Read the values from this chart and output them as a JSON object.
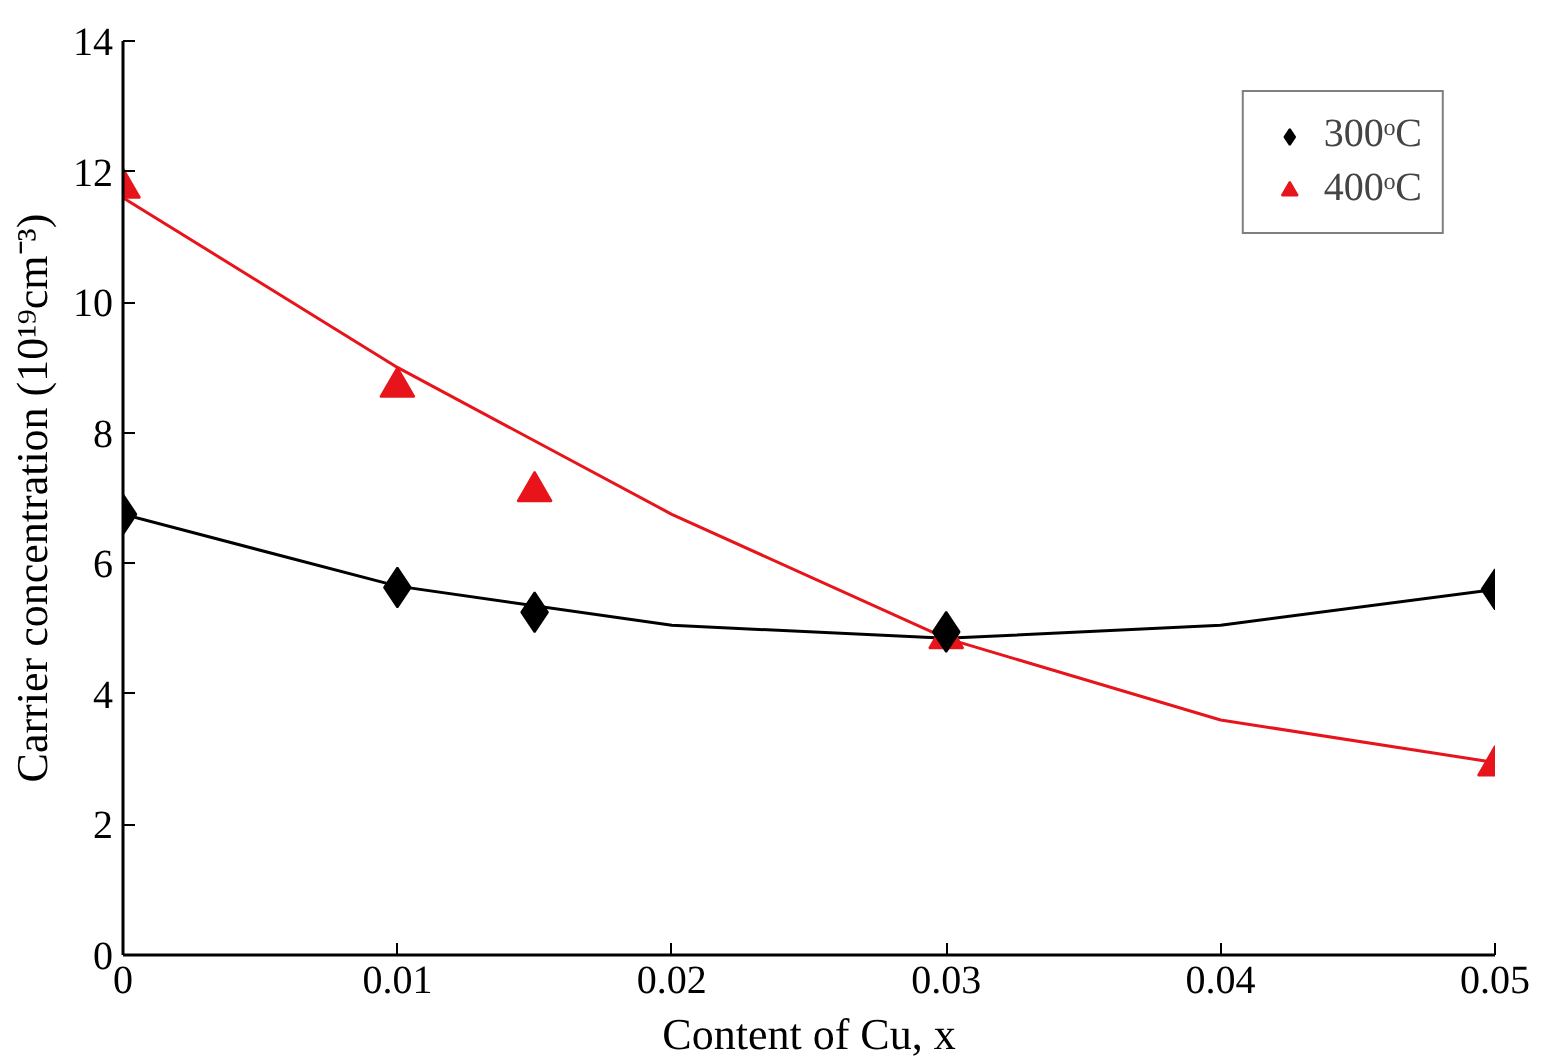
{
  "chart_data": {
    "type": "scatter",
    "xlabel": "Content of Cu, x",
    "ylabel": "Carrier concentration (10¹⁹cm⁻³)",
    "x": [
      0,
      0.01,
      0.015,
      0.03,
      0.05
    ],
    "series": [
      {
        "name": "300ᵒC",
        "color": "#000000",
        "marker": "diamond",
        "values": [
          6.75,
          5.63,
          5.25,
          4.95,
          5.6
        ]
      },
      {
        "name": "400ᵒC",
        "color": "#e8141c",
        "marker": "triangle",
        "values": [
          11.75,
          8.7,
          7.1,
          4.85,
          2.9
        ]
      },
      {
        "type": "line",
        "color": "#000000",
        "marker": "none",
        "x": [
          0,
          0.01,
          0.02,
          0.03,
          0.04,
          0.05
        ],
        "values": [
          6.75,
          5.65,
          5.05,
          4.85,
          5.05,
          5.6
        ]
      },
      {
        "type": "line",
        "color": "#e8141c",
        "marker": "none",
        "x": [
          0,
          0.01,
          0.02,
          0.03,
          0.04,
          0.05
        ],
        "values": [
          11.6,
          9.0,
          6.75,
          4.85,
          3.6,
          2.95
        ]
      }
    ],
    "xlim": [
      0,
      0.05
    ],
    "xticks": [
      0,
      0.01,
      0.02,
      0.03,
      0.04,
      0.05
    ],
    "ylim": [
      0,
      14
    ],
    "yticks": [
      0,
      2,
      4,
      6,
      8,
      10,
      12,
      14
    ],
    "grid": false,
    "legend": "top right"
  }
}
